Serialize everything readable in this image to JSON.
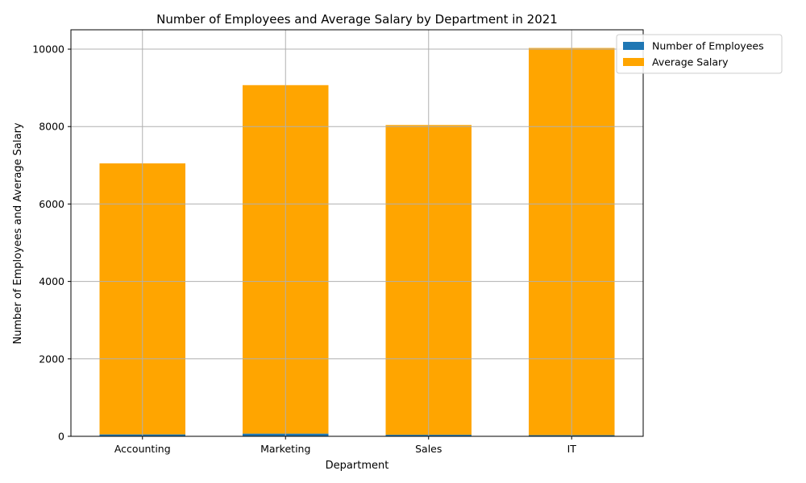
{
  "chart_data": {
    "type": "bar",
    "title": "Number of Employees and Average Salary by Department in 2021",
    "xlabel": "Department",
    "ylabel": "Number of Employees and Average Salary",
    "categories": [
      "Accounting",
      "Marketing",
      "Sales",
      "IT"
    ],
    "series": [
      {
        "name": "Number of Employees",
        "color": "#1f77b4",
        "values": [
          50,
          70,
          40,
          30
        ]
      },
      {
        "name": "Average Salary",
        "color": "#ffa500",
        "values": [
          7000,
          9000,
          8000,
          10000
        ]
      }
    ],
    "stacked": true,
    "ylim": [
      0,
      10500
    ],
    "yticks": [
      0,
      2000,
      4000,
      6000,
      8000,
      10000
    ],
    "grid": true,
    "legend_position": "upper-right-outside"
  }
}
